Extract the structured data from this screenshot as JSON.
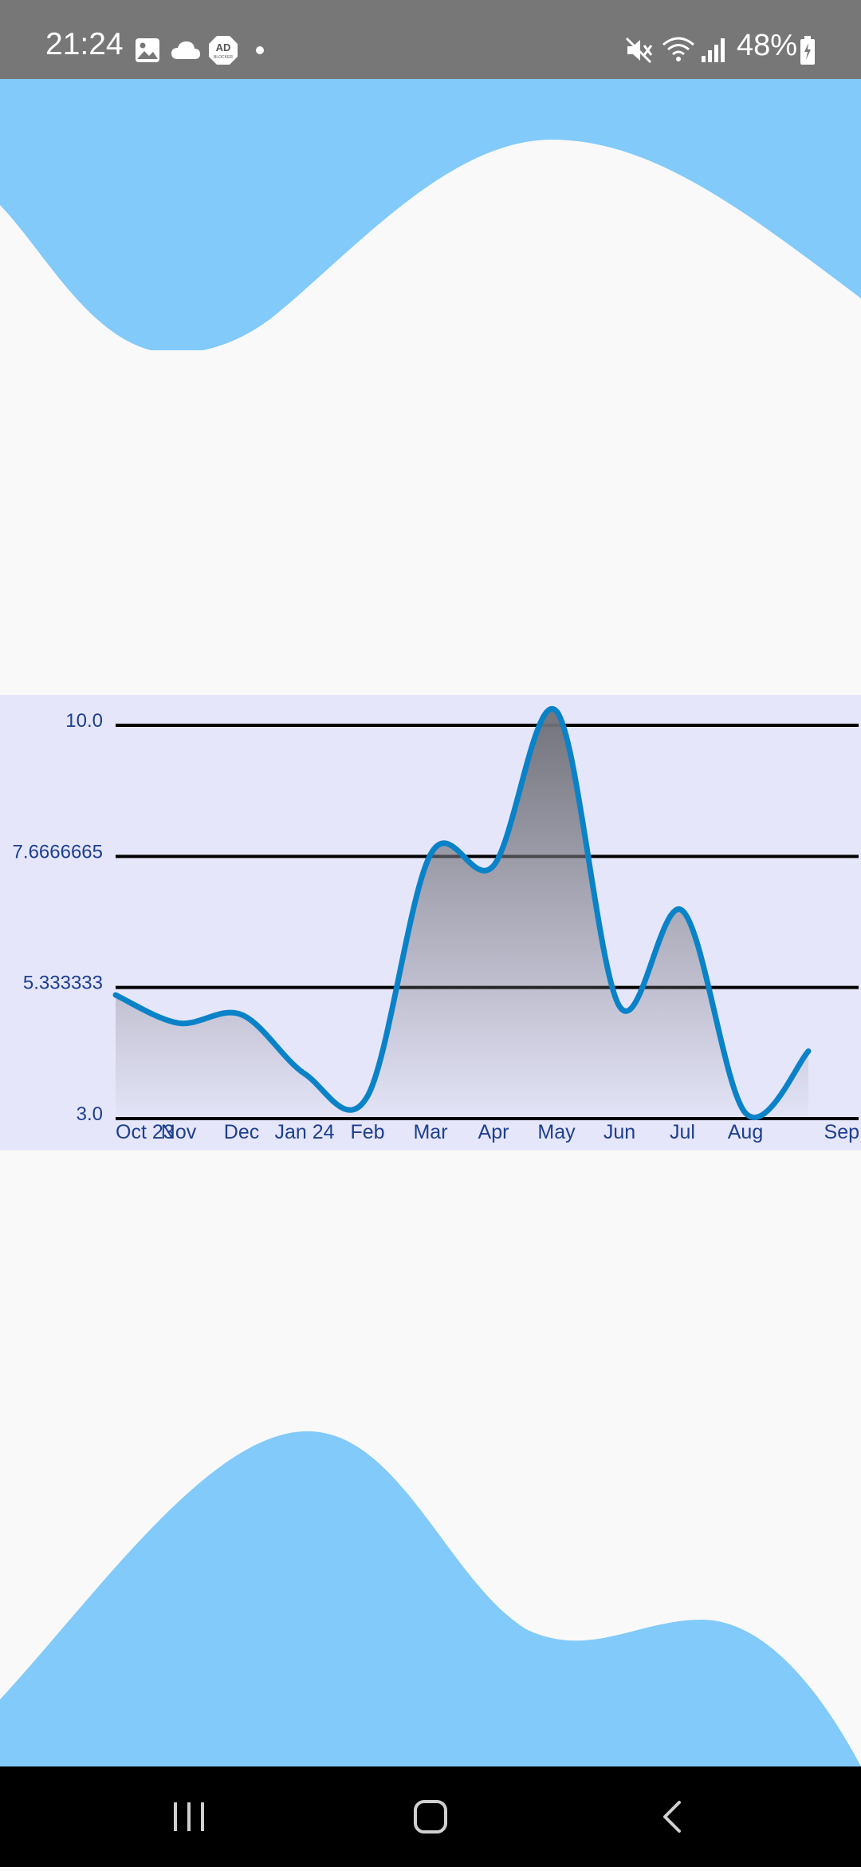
{
  "status_bar": {
    "time": "21:24",
    "battery": "48%",
    "icons": [
      "image-icon",
      "cloud-icon",
      "ad-blocker-icon",
      "dot-icon",
      "mute-icon",
      "wifi-icon",
      "signal-icon",
      "battery-icon"
    ],
    "ad_blocker_label": "AD",
    "ad_blocker_sub": "BLOCKER"
  },
  "colors": {
    "status_bar_bg": "#777777",
    "wave": "#81cafa",
    "background": "#f9f9f9",
    "chart_bg": "#e6e6fa",
    "line": "#0a82c8",
    "axis_text": "#1c3f8f",
    "nav_bg": "#000000"
  },
  "chart_data": {
    "type": "area",
    "categories": [
      "Oct 23",
      "Nov",
      "Dec",
      "Jan 24",
      "Feb",
      "Mar",
      "Apr",
      "May",
      "Jun",
      "Jul",
      "Aug",
      "Sep"
    ],
    "y_tick_labels": [
      "10.0",
      "7.6666665",
      "5.333333",
      "3.0"
    ],
    "ylim": [
      3.0,
      10.0
    ],
    "grid": true,
    "series": [
      {
        "values": [
          5.2,
          4.7,
          4.85,
          3.8,
          3.4,
          7.7,
          7.5,
          10.25,
          5.0,
          6.7,
          3.1,
          4.2
        ]
      }
    ],
    "title": "",
    "xlabel": "",
    "ylabel": ""
  },
  "nav": {
    "buttons": [
      "recents-button",
      "home-button",
      "back-button"
    ]
  }
}
